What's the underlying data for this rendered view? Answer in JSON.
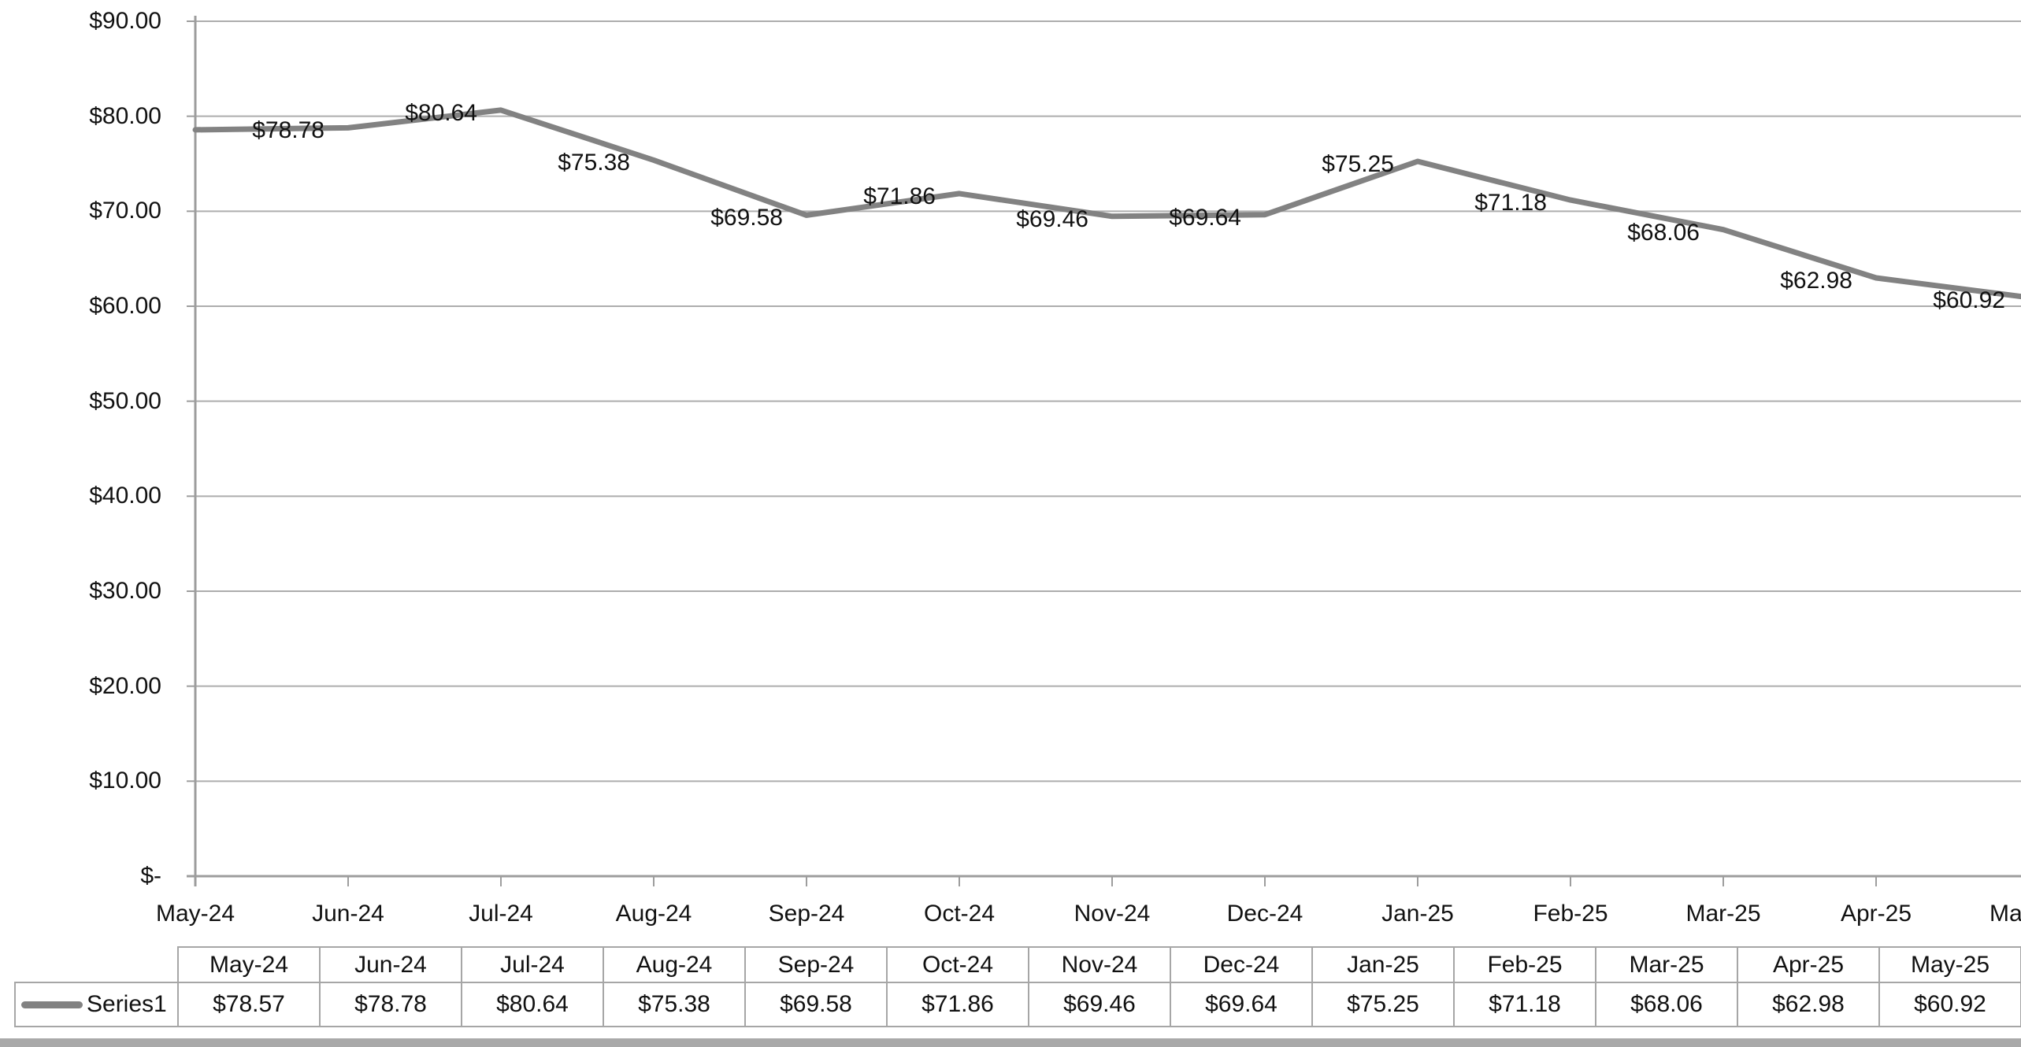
{
  "chart_data": {
    "type": "line",
    "title": "",
    "x_categories": [
      "May-24",
      "Jun-24",
      "Jul-24",
      "Aug-24",
      "Sep-24",
      "Oct-24",
      "Nov-24",
      "Dec-24",
      "Jan-25",
      "Feb-25",
      "Mar-25",
      "Apr-25",
      "May-25"
    ],
    "series": [
      {
        "name": "Series1",
        "values": [
          78.57,
          78.78,
          80.64,
          75.38,
          69.58,
          71.86,
          69.46,
          69.64,
          75.25,
          71.18,
          68.06,
          62.98,
          60.92
        ]
      }
    ],
    "point_labels": [
      "",
      "$78.78",
      "$80.64",
      "$75.38",
      "$69.58",
      "$71.86",
      "$69.46",
      "$69.64",
      "$75.25",
      "$71.18",
      "$68.06",
      "$62.98",
      "$60.92"
    ],
    "y_axis": {
      "min": 0,
      "max": 90,
      "step": 10,
      "tick_values": [
        0,
        10,
        20,
        30,
        40,
        50,
        60,
        70,
        80,
        90
      ],
      "tick_labels": [
        "$-",
        "$10.00",
        "$20.00",
        "$30.00",
        "$40.00",
        "$50.00",
        "$60.00",
        "$70.00",
        "$80.00",
        "$90.00"
      ]
    },
    "grid": true,
    "legend": {
      "position": "data-table-left",
      "entries": [
        "Series1"
      ]
    },
    "data_table": {
      "columns": [
        "May-24",
        "Jun-24",
        "Jul-24",
        "Aug-24",
        "Sep-24",
        "Oct-24",
        "Nov-24",
        "Dec-24",
        "Jan-25",
        "Feb-25",
        "Mar-25",
        "Apr-25",
        "May-25"
      ],
      "rows": [
        {
          "header": "Series1",
          "values": [
            "$78.57",
            "$78.78",
            "$80.64",
            "$75.38",
            "$69.58",
            "$71.86",
            "$69.46",
            "$69.64",
            "$75.25",
            "$71.18",
            "$68.06",
            "$62.98",
            "$60.92"
          ]
        }
      ]
    }
  },
  "colors": {
    "background": "#ffffff",
    "series_line": "#828282",
    "gridline": "#adadad",
    "axis": "#9d9d9d",
    "table_border": "#a6a6a6",
    "text": "#111111",
    "bottom_bar": "#a9a9a9"
  }
}
